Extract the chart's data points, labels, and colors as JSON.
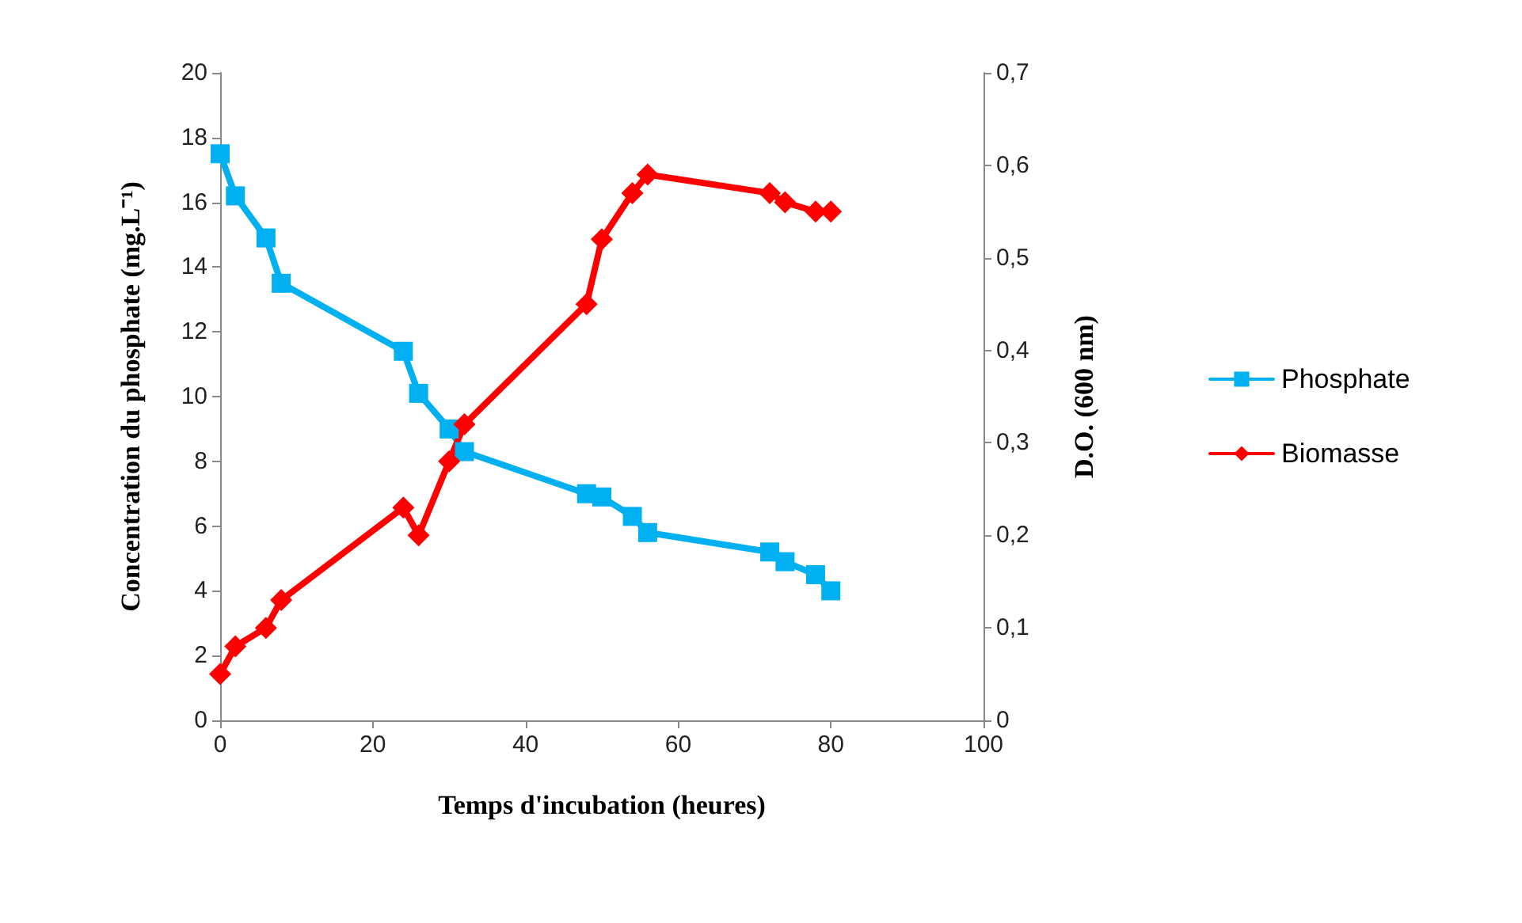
{
  "chart_data": {
    "type": "line",
    "xlabel": "Temps d'incubation (heures)",
    "ylabel": "Concentration du phosphate (mg.L⁻¹)",
    "y2label": "D.O. (600 nm)",
    "x": [
      0,
      2,
      6,
      8,
      24,
      26,
      30,
      32,
      48,
      50,
      54,
      56,
      72,
      74,
      78,
      80
    ],
    "series": [
      {
        "name": "Phosphate",
        "color": "#00b0f0",
        "marker": "square",
        "values": [
          17.5,
          16.2,
          14.9,
          13.5,
          11.4,
          10.1,
          9,
          8.3,
          7,
          6.9,
          6.3,
          5.8,
          5.2,
          4.9,
          4.5,
          4
        ]
      },
      {
        "name": "Biomasse",
        "color": "#ff0000",
        "marker": "diamond",
        "axis": "y2",
        "values": [
          0.05,
          0.08,
          0.1,
          0.13,
          0.23,
          0.2,
          0.28,
          0.32,
          0.45,
          0.52,
          0.57,
          0.59,
          0.57,
          0.56,
          0.55,
          0.55
        ]
      }
    ],
    "xlim": [
      0,
      100
    ],
    "xticks": [
      0,
      20,
      40,
      60,
      80,
      100
    ],
    "ylim": [
      0,
      20
    ],
    "yticks": [
      0,
      2,
      4,
      6,
      8,
      10,
      12,
      14,
      16,
      18,
      20
    ],
    "y2lim": [
      0,
      0.7
    ],
    "y2ticks": [
      0,
      {
        "value": 0.1,
        "label": "0,1"
      },
      {
        "value": 0.2,
        "label": "0,2"
      },
      {
        "value": 0.3,
        "label": "0,3"
      },
      {
        "value": 0.4,
        "label": "0,4"
      },
      {
        "value": 0.5,
        "label": "0,5"
      },
      {
        "value": 0.6,
        "label": "0,6"
      },
      {
        "value": 0.7,
        "label": "0,7"
      }
    ],
    "grid": false,
    "legend": "right"
  }
}
